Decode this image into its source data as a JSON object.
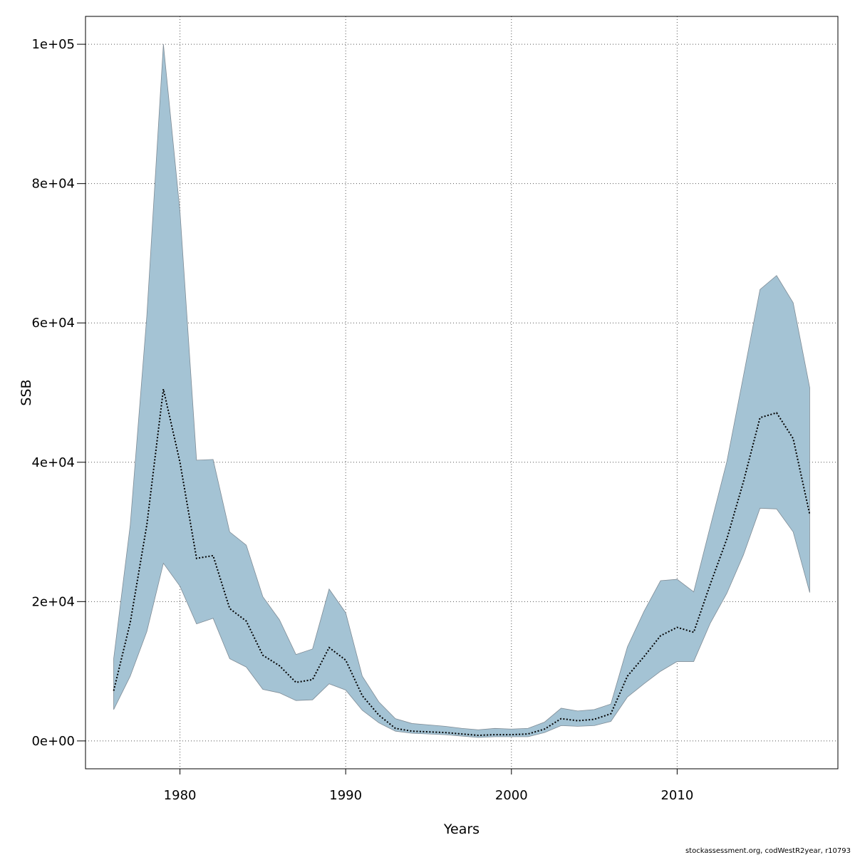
{
  "chart_data": {
    "type": "area",
    "xlabel": "Years",
    "ylabel": "SSB",
    "xlim": [
      1974.3,
      2019.7
    ],
    "ylim": [
      -4000,
      104000
    ],
    "x_ticks": [
      1980,
      1990,
      2000,
      2010
    ],
    "x_tick_labels": [
      "1980",
      "1990",
      "2000",
      "2010"
    ],
    "y_ticks": [
      0,
      20000,
      40000,
      60000,
      80000,
      100000
    ],
    "y_tick_labels": [
      "0e+00",
      "2e+04",
      "4e+04",
      "6e+04",
      "8e+04",
      "1e+05"
    ],
    "grid": true,
    "colors": {
      "band": "#a4c3d4",
      "band_edge": "#7f8c96",
      "line": "#000000",
      "grid": "#555555"
    },
    "x": [
      1976,
      1977,
      1978,
      1979,
      1980,
      1981,
      1982,
      1983,
      1984,
      1985,
      1986,
      1987,
      1988,
      1989,
      1990,
      1991,
      1992,
      1993,
      1994,
      1995,
      1996,
      1997,
      1998,
      1999,
      2000,
      2001,
      2002,
      2003,
      2004,
      2005,
      2006,
      2007,
      2008,
      2009,
      2010,
      2011,
      2012,
      2013,
      2014,
      2015,
      2016,
      2017,
      2018
    ],
    "series": [
      {
        "values": [
          7200,
          17000,
          31000,
          50500,
          40000,
          26200,
          26600,
          19000,
          17200,
          12300,
          10800,
          8400,
          8800,
          13400,
          11600,
          6500,
          3700,
          1800,
          1400,
          1300,
          1200,
          1000,
          800,
          900,
          900,
          1000,
          1700,
          3200,
          2900,
          3100,
          3900,
          9300,
          12100,
          15100,
          16300,
          15600,
          22500,
          29000,
          37200,
          46400,
          47100,
          43400,
          32500
        ]
      }
    ],
    "band": {
      "upper": [
        11800,
        31000,
        61000,
        100000,
        76000,
        40300,
        40400,
        30000,
        28100,
        20700,
        17400,
        12400,
        13200,
        21800,
        18400,
        9300,
        5600,
        3200,
        2500,
        2300,
        2100,
        1800,
        1600,
        1800,
        1700,
        1800,
        2700,
        4700,
        4300,
        4500,
        5300,
        13500,
        18600,
        23000,
        23200,
        21400,
        30800,
        40100,
        52400,
        64800,
        66800,
        62900,
        50700
      ],
      "lower": [
        4500,
        9300,
        15700,
        25500,
        22200,
        16800,
        17600,
        11800,
        10600,
        7400,
        6900,
        5800,
        5900,
        8200,
        7300,
        4400,
        2600,
        1400,
        1100,
        1000,
        900,
        700,
        500,
        600,
        600,
        600,
        1200,
        2200,
        2100,
        2200,
        2800,
        6300,
        8200,
        10000,
        11400,
        11400,
        16900,
        21200,
        26700,
        33400,
        33300,
        30000,
        21300
      ]
    }
  },
  "footer_text": "stockassessment.org, codWestR2year, r10793"
}
